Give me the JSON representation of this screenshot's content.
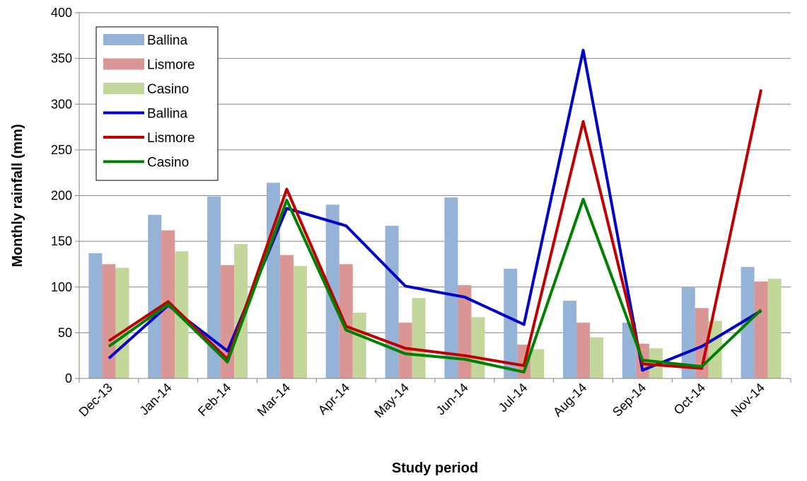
{
  "chart_data": {
    "type": "bar",
    "title": "",
    "xlabel": "Study period",
    "ylabel": "Monthly rainfall (mm)",
    "ylim": [
      0,
      400
    ],
    "yticks": [
      0,
      50,
      100,
      150,
      200,
      250,
      300,
      350,
      400
    ],
    "grid": true,
    "legend_position": "top-left",
    "categories": [
      "Dec-13",
      "Jan-14",
      "Feb-14",
      "Mar-14",
      "Apr-14",
      "May-14",
      "Jun-14",
      "Jul-14",
      "Aug-14",
      "Sep-14",
      "Oct-14",
      "Nov-14"
    ],
    "bar_series": [
      {
        "name": "Ballina",
        "color": "#95B3D7",
        "values": [
          137,
          179,
          199,
          214,
          190,
          167,
          198,
          120,
          85,
          61,
          100,
          122
        ]
      },
      {
        "name": "Lismore",
        "color": "#DA9694",
        "values": [
          125,
          162,
          124,
          135,
          125,
          61,
          102,
          37,
          61,
          38,
          77,
          106
        ]
      },
      {
        "name": "Casino",
        "color": "#C4D79B",
        "values": [
          121,
          139,
          147,
          123,
          72,
          88,
          67,
          32,
          45,
          33,
          63,
          109
        ]
      }
    ],
    "line_series": [
      {
        "name": "Ballina",
        "color": "#0000C8",
        "values": [
          22,
          80,
          30,
          186,
          167,
          101,
          89,
          59,
          359,
          9,
          35,
          74
        ]
      },
      {
        "name": "Lismore",
        "color": "#C00000",
        "values": [
          41,
          84,
          21,
          207,
          57,
          33,
          25,
          14,
          281,
          16,
          11,
          316
        ]
      },
      {
        "name": "Casino",
        "color": "#008000",
        "values": [
          35,
          81,
          18,
          195,
          53,
          27,
          21,
          7,
          196,
          20,
          13,
          75
        ]
      }
    ]
  }
}
